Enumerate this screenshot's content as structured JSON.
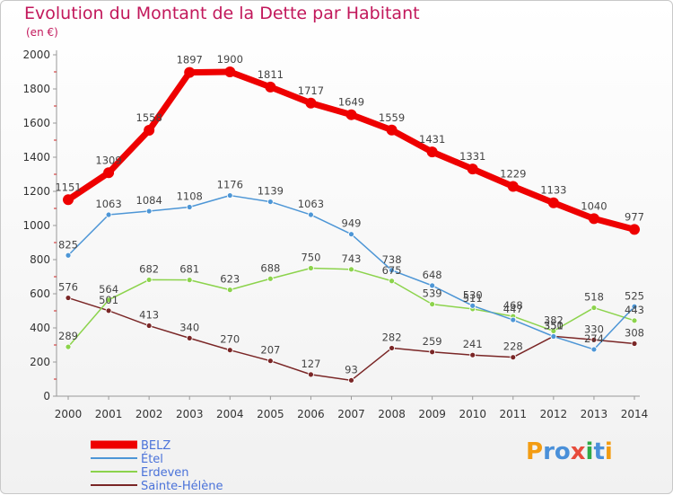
{
  "title": "Evolution du Montant de la Dette par Habitant",
  "subtitle": "(en €)",
  "chart_data": {
    "type": "line",
    "x": [
      "2000",
      "2001",
      "2002",
      "2003",
      "2004",
      "2005",
      "2006",
      "2007",
      "2008",
      "2009",
      "2010",
      "2011",
      "2012",
      "2013",
      "2014"
    ],
    "ylim": [
      0,
      2000
    ],
    "yticks": [
      0,
      200,
      400,
      600,
      800,
      1000,
      1200,
      1400,
      1600,
      1800,
      2000
    ],
    "grid": false,
    "legend_position": "bottom-left",
    "series": [
      {
        "name": "BELZ",
        "color": "#ee0000",
        "width": 7,
        "marker": 6,
        "values": [
          1151,
          1309,
          1558,
          1897,
          1900,
          1811,
          1717,
          1649,
          1559,
          1431,
          1331,
          1229,
          1133,
          1040,
          977
        ],
        "labels": [
          "1151",
          "1309",
          "1558",
          "1897",
          "1900",
          "1811",
          "1717",
          "1649",
          "1559",
          "1431",
          "1331",
          "1229",
          "1133",
          "1040",
          "977"
        ]
      },
      {
        "name": "Étel",
        "color": "#4d96d6",
        "width": 1.5,
        "marker": 3,
        "values": [
          825,
          1063,
          1084,
          1108,
          1176,
          1139,
          1063,
          949,
          738,
          648,
          530,
          447,
          350,
          274,
          525
        ],
        "labels": [
          "825",
          "1063",
          "1084",
          "1108",
          "1176",
          "1139",
          "1063",
          "949",
          "738",
          "648",
          "530",
          "447",
          "350",
          "274",
          "525"
        ]
      },
      {
        "name": "Erdeven",
        "color": "#8cd34c",
        "width": 1.5,
        "marker": 3,
        "values": [
          289,
          564,
          682,
          681,
          623,
          688,
          750,
          743,
          675,
          539,
          511,
          468,
          382,
          518,
          443
        ],
        "labels": [
          "289",
          "564",
          "682",
          "681",
          "623",
          "688",
          "750",
          "743",
          "675",
          "539",
          "511",
          "468",
          "382",
          "518",
          "443"
        ]
      },
      {
        "name": "Sainte-Hélène",
        "color": "#7a2626",
        "width": 1.5,
        "marker": 3,
        "values": [
          576,
          501,
          413,
          340,
          270,
          207,
          127,
          93,
          282,
          259,
          241,
          228,
          351,
          330,
          308
        ],
        "labels": [
          "576",
          "501",
          "413",
          "340",
          "270",
          "207",
          "127",
          "93",
          "282",
          "259",
          "241",
          "228",
          "351",
          "330",
          "308"
        ]
      }
    ]
  },
  "logo": {
    "text": "Proxiti",
    "letters": [
      "P",
      "r",
      "o",
      "x",
      "i",
      "t",
      "i"
    ],
    "colors": [
      "#f39c12",
      "#4a90d9",
      "#4a90d9",
      "#e74c3c",
      "#2eaa47",
      "#4a90d9",
      "#f39c12"
    ]
  }
}
